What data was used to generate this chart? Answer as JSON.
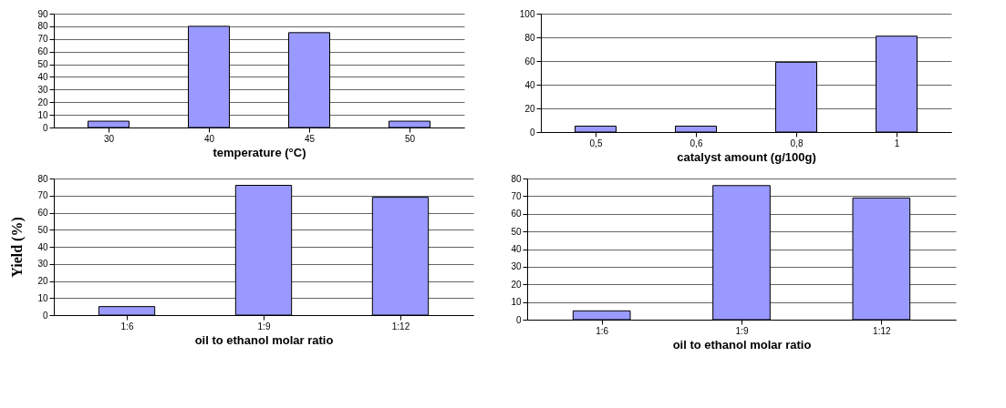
{
  "chart_data": [
    {
      "type": "bar",
      "xlabel": "temperature (°C)",
      "categories": [
        "30",
        "40",
        "45",
        "50"
      ],
      "values": [
        5,
        80,
        75,
        5
      ],
      "color": "#9999ff",
      "ylim": [
        0,
        90
      ],
      "yticks": [
        0,
        10,
        20,
        30,
        40,
        50,
        60,
        70,
        80,
        90
      ],
      "grid": "y"
    },
    {
      "type": "bar",
      "xlabel": "catalyst amount (g/100g)",
      "categories": [
        "0,5",
        "0,6",
        "0,8",
        "1"
      ],
      "values": [
        5,
        5,
        59,
        81
      ],
      "color": "#9999ff",
      "ylim": [
        0,
        100
      ],
      "yticks": [
        0,
        20,
        40,
        60,
        80,
        100
      ],
      "grid": "y"
    },
    {
      "type": "bar",
      "xlabel": "oil to ethanol molar ratio",
      "ylabel": "Yield (%)",
      "categories": [
        "1:6",
        "1:9",
        "1:12"
      ],
      "values": [
        5,
        76,
        69
      ],
      "color": "#9999ff",
      "ylim": [
        0,
        80
      ],
      "yticks": [
        0,
        10,
        20,
        30,
        40,
        50,
        60,
        70,
        80
      ],
      "grid": "y"
    },
    {
      "type": "bar",
      "xlabel": "oil to ethanol molar ratio",
      "categories": [
        "1:6",
        "1:9",
        "1:12"
      ],
      "values": [
        5,
        76,
        69
      ],
      "color": "#9999ff",
      "ylim": [
        0,
        80
      ],
      "yticks": [
        0,
        10,
        20,
        30,
        40,
        50,
        60,
        70,
        80
      ],
      "grid": "y"
    }
  ]
}
